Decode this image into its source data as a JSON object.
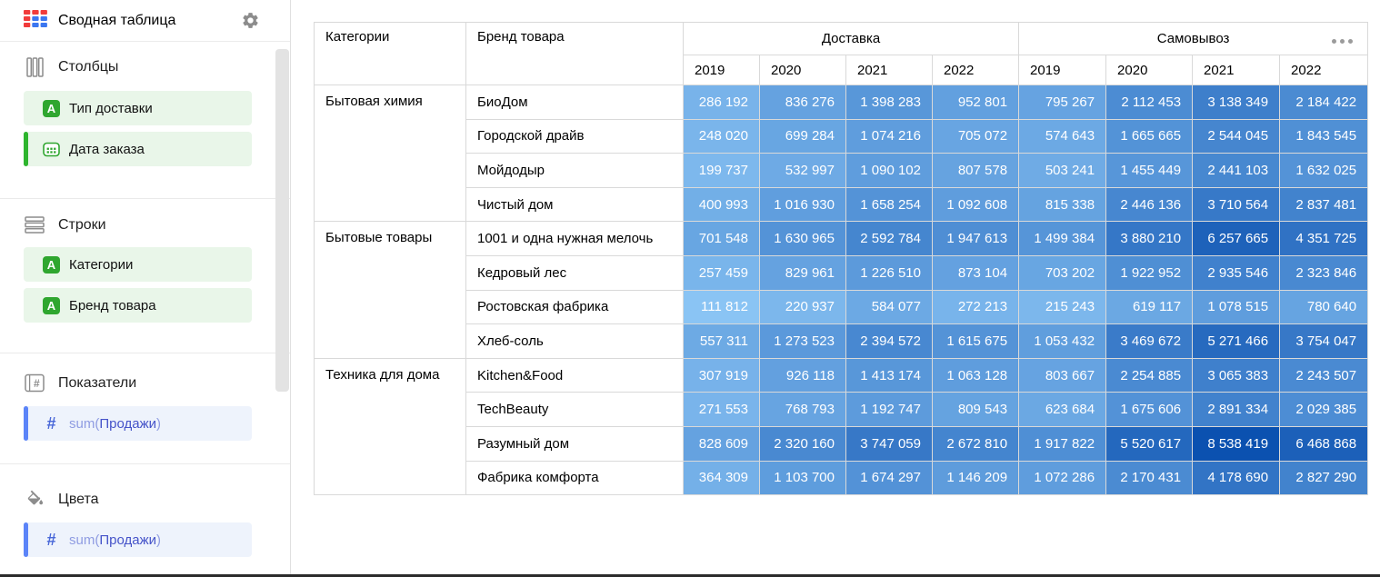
{
  "sidebar": {
    "title": "Сводная таблица",
    "gear_icon": "settings-gear-icon",
    "sections": [
      {
        "id": "columns",
        "label": "Столбцы",
        "icon": "columns-icon",
        "items": [
          {
            "label": "Тип доставки",
            "icon": "string-field-icon",
            "kind": "dimension",
            "indicator": false
          },
          {
            "label": "Дата заказа",
            "icon": "date-field-icon",
            "kind": "dimension",
            "indicator": true
          }
        ]
      },
      {
        "id": "rows",
        "label": "Строки",
        "icon": "rows-icon",
        "items": [
          {
            "label": "Категории",
            "icon": "string-field-icon",
            "kind": "dimension",
            "indicator": false
          },
          {
            "label": "Бренд товара",
            "icon": "string-field-icon",
            "kind": "dimension",
            "indicator": false
          }
        ]
      },
      {
        "id": "measures",
        "label": "Показатели",
        "icon": "measures-icon",
        "items": [
          {
            "func": "sum(",
            "field": "Продажи",
            "close": ")",
            "icon": "number-field-icon",
            "kind": "measure",
            "indicator": true
          }
        ]
      },
      {
        "id": "colors",
        "label": "Цвета",
        "icon": "colors-icon",
        "items": [
          {
            "func": "sum(",
            "field": "Продажи",
            "close": ")",
            "icon": "number-field-icon",
            "kind": "measure",
            "indicator": true
          }
        ]
      }
    ]
  },
  "menu_dots_icon": "more-options-icon",
  "chart_data": {
    "type": "table",
    "title": "Сводная таблица",
    "row_headers": [
      "Категории",
      "Бренд товара"
    ],
    "column_groups": [
      {
        "label": "Доставка",
        "years": [
          "2019",
          "2020",
          "2021",
          "2022"
        ]
      },
      {
        "label": "Самовывоз",
        "years": [
          "2019",
          "2020",
          "2021",
          "2022"
        ]
      }
    ],
    "measure": "sum(Продажи)",
    "color_scale": {
      "min_color": "#8ac4f4",
      "max_color": "#0b51b0",
      "scale": "sqrt",
      "text_color": "#ffffff"
    },
    "groups": [
      {
        "category": "Бытовая химия",
        "rows": [
          {
            "brand": "БиоДом",
            "delivery": [
              286192,
              836276,
              1398283,
              952801
            ],
            "pickup": [
              795267,
              2112453,
              3138349,
              2184422
            ]
          },
          {
            "brand": "Городской драйв",
            "delivery": [
              248020,
              699284,
              1074216,
              705072
            ],
            "pickup": [
              574643,
              1665665,
              2544045,
              1843545
            ]
          },
          {
            "brand": "Мойдодыр",
            "delivery": [
              199737,
              532997,
              1090102,
              807578
            ],
            "pickup": [
              503241,
              1455449,
              2441103,
              1632025
            ]
          },
          {
            "brand": "Чистый дом",
            "delivery": [
              400993,
              1016930,
              1658254,
              1092608
            ],
            "pickup": [
              815338,
              2446136,
              3710564,
              2837481
            ]
          }
        ]
      },
      {
        "category": "Бытовые товары",
        "rows": [
          {
            "brand": "1001 и одна нужная мелочь",
            "delivery": [
              701548,
              1630965,
              2592784,
              1947613
            ],
            "pickup": [
              1499384,
              3880210,
              6257665,
              4351725
            ]
          },
          {
            "brand": "Кедровый лес",
            "delivery": [
              257459,
              829961,
              1226510,
              873104
            ],
            "pickup": [
              703202,
              1922952,
              2935546,
              2323846
            ]
          },
          {
            "brand": "Ростовская фабрика",
            "delivery": [
              111812,
              220937,
              584077,
              272213
            ],
            "pickup": [
              215243,
              619117,
              1078515,
              780640
            ]
          },
          {
            "brand": "Хлеб-соль",
            "delivery": [
              557311,
              1273523,
              2394572,
              1615675
            ],
            "pickup": [
              1053432,
              3469672,
              5271466,
              3754047
            ]
          }
        ]
      },
      {
        "category": "Техника для дома",
        "rows": [
          {
            "brand": "Kitchen&Food",
            "delivery": [
              307919,
              926118,
              1413174,
              1063128
            ],
            "pickup": [
              803667,
              2254885,
              3065383,
              2243507
            ]
          },
          {
            "brand": "TechBeauty",
            "delivery": [
              271553,
              768793,
              1192747,
              809543
            ],
            "pickup": [
              623684,
              1675606,
              2891334,
              2029385
            ]
          },
          {
            "brand": "Разумный дом",
            "delivery": [
              828609,
              2320160,
              3747059,
              2672810
            ],
            "pickup": [
              1917822,
              5520617,
              8538419,
              6468868
            ]
          },
          {
            "brand": "Фабрика комфорта",
            "delivery": [
              364309,
              1103700,
              1674297,
              1146209
            ],
            "pickup": [
              1072286,
              2170431,
              4178690,
              2827290
            ]
          }
        ]
      }
    ]
  }
}
